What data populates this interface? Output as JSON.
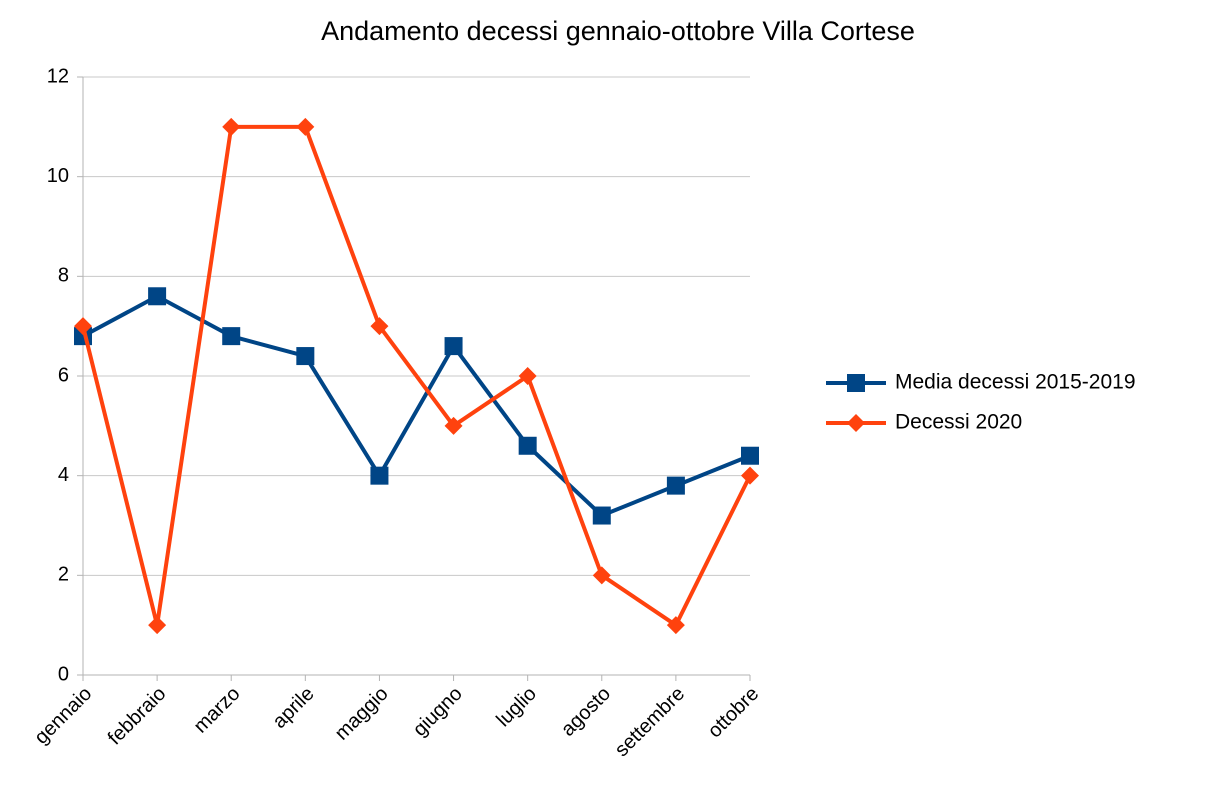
{
  "chart_data": {
    "type": "line",
    "title": "Andamento decessi gennaio-ottobre Villa Cortese",
    "categories": [
      "gennaio",
      "febbraio",
      "marzo",
      "aprile",
      "maggio",
      "giugno",
      "luglio",
      "agosto",
      "settembre",
      "ottobre"
    ],
    "series": [
      {
        "name": "Media decessi 2015-2019",
        "color": "#004586",
        "marker": "square",
        "values": [
          6.8,
          7.6,
          6.8,
          6.4,
          4.0,
          6.6,
          4.6,
          3.2,
          3.8,
          4.4
        ]
      },
      {
        "name": "Decessi 2020",
        "color": "#ff420e",
        "marker": "diamond",
        "values": [
          7,
          1,
          11,
          11,
          7,
          5,
          6,
          2,
          1,
          4
        ]
      }
    ],
    "ylim": [
      0,
      12
    ],
    "yticks": [
      0,
      2,
      4,
      6,
      8,
      10,
      12
    ],
    "grid": true,
    "legend": "right"
  }
}
